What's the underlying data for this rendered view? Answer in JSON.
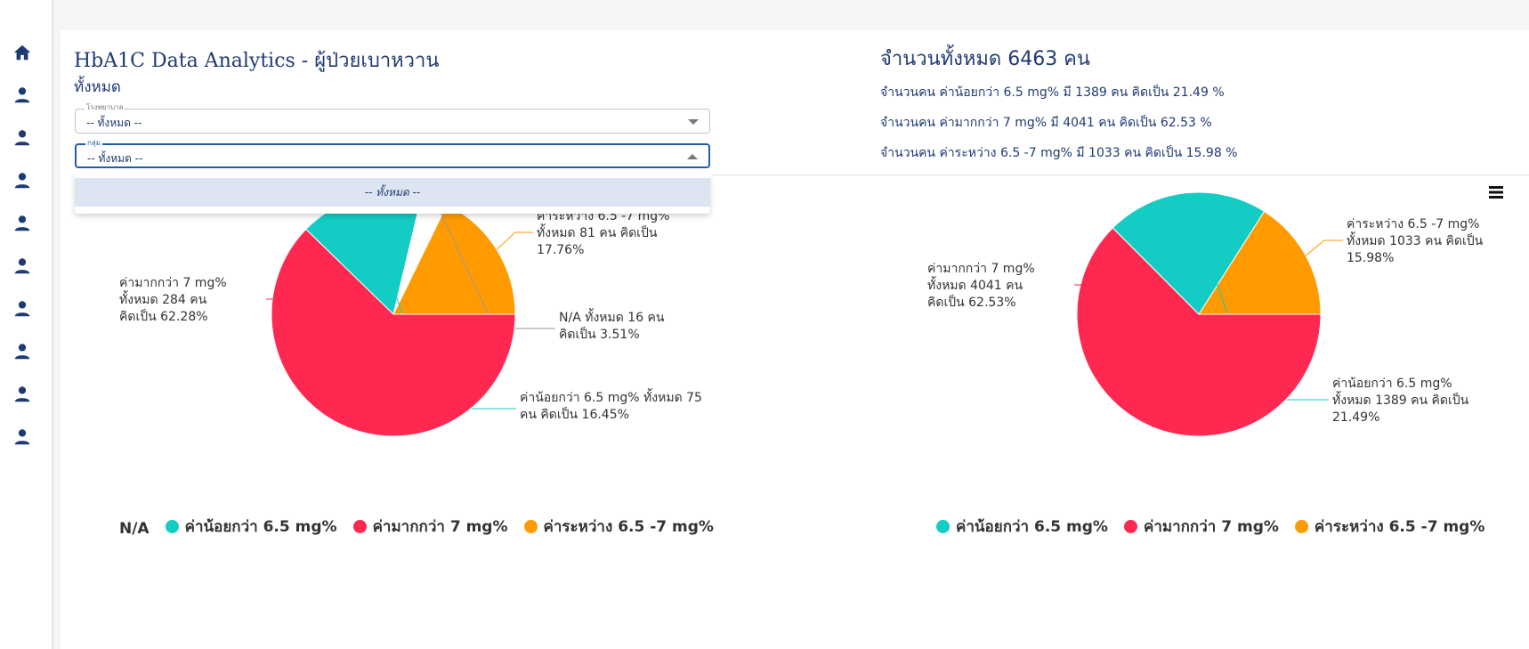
{
  "sidebar": {
    "items": [
      {
        "name": "home-icon"
      },
      {
        "name": "person-icon"
      },
      {
        "name": "person-icon"
      },
      {
        "name": "person-icon"
      },
      {
        "name": "person-icon"
      },
      {
        "name": "person-icon"
      },
      {
        "name": "person-icon"
      },
      {
        "name": "person-icon"
      },
      {
        "name": "person-icon"
      },
      {
        "name": "person-icon"
      }
    ],
    "color": "#1f3a73"
  },
  "header": {
    "title": "HbA1C Data Analytics - ผู้ป่วยเบาหวาน",
    "subtitle": "ทั้งหมด"
  },
  "filters": {
    "hospital": {
      "label": "โรงพยาบาล",
      "value": "-- ทั้งหมด --"
    },
    "group": {
      "label": "กลุ่ม",
      "value": "-- ทั้งหมด --"
    },
    "dropdown_options": [
      "-- ทั้งหมด --"
    ]
  },
  "summary": {
    "total": "จำนวนทั้งหมด 6463 คน",
    "lines": [
      "จำนวนคน ค่าน้อยกว่า 6.5 mg% มี 1389 คน คิดเป็น 21.49 %",
      "จำนวนคน ค่ามากกว่า 7 mg% มี 4041 คน คิดเป็น 62.53 %",
      "จำนวนคน ค่าระหว่าง 6.5 -7 mg% มี 1033 คน คิดเป็น 15.98 %"
    ]
  },
  "colors": {
    "na": "#ffffff",
    "low": "#13ccc3",
    "high": "#ff2851",
    "mid": "#ff9b00",
    "na_line": "#999999"
  },
  "chart_data": [
    {
      "type": "pie",
      "slices": [
        {
          "name": "ค่าระหว่าง 6.5 -7 mg%",
          "value": 81,
          "percent": 17.76,
          "color": "#ff9b00",
          "label": [
            "ค่าระหว่าง 6.5 -7 mg%",
            "ทั้งหมด 81 คน คิดเป็น",
            "17.76%"
          ]
        },
        {
          "name": "N/A",
          "value": 16,
          "percent": 3.51,
          "color": "#ffffff",
          "line_color": "#999999",
          "label": [
            "N/A ทั้งหมด 16 คน",
            "คิดเป็น 3.51%"
          ]
        },
        {
          "name": "ค่าน้อยกว่า 6.5 mg%",
          "value": 75,
          "percent": 16.45,
          "color": "#13ccc3",
          "label": [
            "ค่าน้อยกว่า 6.5 mg% ทั้งหมด 75",
            "คน คิดเป็น 16.45%"
          ]
        },
        {
          "name": "ค่ามากกว่า 7 mg%",
          "value": 284,
          "percent": 62.28,
          "color": "#ff2851",
          "label": [
            "ค่ามากกว่า 7 mg%",
            "ทั้งหมด 284 คน",
            "คิดเป็น 62.28%"
          ]
        }
      ],
      "legend": [
        {
          "name": "N/A",
          "color": ""
        },
        {
          "name": "ค่าน้อยกว่า 6.5 mg%",
          "color": "#13ccc3"
        },
        {
          "name": "ค่ามากกว่า 7 mg%",
          "color": "#ff2851"
        },
        {
          "name": "ค่าระหว่าง 6.5 -7 mg%",
          "color": "#ff9b00"
        }
      ]
    },
    {
      "type": "pie",
      "slices": [
        {
          "name": "ค่าระหว่าง 6.5 -7 mg%",
          "value": 1033,
          "percent": 15.98,
          "color": "#ff9b00",
          "label": [
            "ค่าระหว่าง 6.5 -7 mg%",
            "ทั้งหมด 1033 คน คิดเป็น",
            "15.98%"
          ]
        },
        {
          "name": "ค่าน้อยกว่า 6.5 mg%",
          "value": 1389,
          "percent": 21.49,
          "color": "#13ccc3",
          "label": [
            "ค่าน้อยกว่า 6.5 mg%",
            "ทั้งหมด 1389 คน คิดเป็น",
            "21.49%"
          ]
        },
        {
          "name": "ค่ามากกว่า 7 mg%",
          "value": 4041,
          "percent": 62.53,
          "color": "#ff2851",
          "label": [
            "ค่ามากกว่า 7 mg%",
            "ทั้งหมด 4041 คน",
            "คิดเป็น 62.53%"
          ]
        }
      ],
      "legend": [
        {
          "name": "ค่าน้อยกว่า 6.5 mg%",
          "color": "#13ccc3"
        },
        {
          "name": "ค่ามากกว่า 7 mg%",
          "color": "#ff2851"
        },
        {
          "name": "ค่าระหว่าง 6.5 -7 mg%",
          "color": "#ff9b00"
        }
      ]
    }
  ]
}
